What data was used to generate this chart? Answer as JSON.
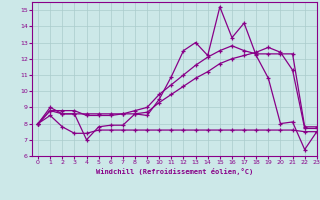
{
  "title": "",
  "xlabel": "Windchill (Refroidissement éolien,°C)",
  "ylabel": "",
  "bg_color": "#cce8e8",
  "grid_color": "#aacccc",
  "line_color": "#880088",
  "xlim": [
    -0.5,
    23
  ],
  "ylim": [
    6,
    15.5
  ],
  "xticks": [
    0,
    1,
    2,
    3,
    4,
    5,
    6,
    7,
    8,
    9,
    10,
    11,
    12,
    13,
    14,
    15,
    16,
    17,
    18,
    19,
    20,
    21,
    22,
    23
  ],
  "yticks": [
    6,
    7,
    8,
    9,
    10,
    11,
    12,
    13,
    14,
    15
  ],
  "line1_x": [
    0,
    1,
    2,
    3,
    4,
    5,
    6,
    7,
    8,
    9,
    10,
    11,
    12,
    13,
    14,
    15,
    16,
    17,
    18,
    19,
    20,
    21,
    22,
    23
  ],
  "line1_y": [
    8.0,
    9.0,
    8.6,
    8.6,
    7.0,
    7.8,
    7.9,
    7.9,
    8.6,
    8.5,
    9.5,
    10.9,
    12.5,
    13.0,
    12.2,
    15.2,
    13.3,
    14.2,
    12.2,
    10.8,
    8.0,
    8.1,
    6.4,
    7.5
  ],
  "line2_x": [
    0,
    1,
    2,
    3,
    4,
    5,
    6,
    7,
    8,
    9,
    10,
    11,
    12,
    13,
    14,
    15,
    16,
    17,
    18,
    19,
    20,
    21,
    22,
    23
  ],
  "line2_y": [
    8.0,
    8.8,
    8.8,
    8.8,
    8.5,
    8.5,
    8.5,
    8.6,
    8.8,
    9.0,
    9.8,
    10.4,
    11.0,
    11.6,
    12.1,
    12.5,
    12.8,
    12.5,
    12.3,
    12.3,
    12.3,
    12.3,
    7.8,
    7.8
  ],
  "line3_x": [
    0,
    1,
    2,
    3,
    4,
    5,
    6,
    7,
    8,
    9,
    10,
    11,
    12,
    13,
    14,
    15,
    16,
    17,
    18,
    19,
    20,
    21,
    22,
    23
  ],
  "line3_y": [
    8.0,
    8.8,
    8.6,
    8.6,
    8.6,
    8.6,
    8.6,
    8.6,
    8.6,
    8.7,
    9.3,
    9.8,
    10.3,
    10.8,
    11.2,
    11.7,
    12.0,
    12.2,
    12.4,
    12.7,
    12.4,
    11.3,
    7.7,
    7.7
  ],
  "line4_x": [
    0,
    1,
    2,
    3,
    4,
    5,
    6,
    7,
    8,
    9,
    10,
    11,
    12,
    13,
    14,
    15,
    16,
    17,
    18,
    19,
    20,
    21,
    22,
    23
  ],
  "line4_y": [
    8.0,
    8.5,
    7.8,
    7.4,
    7.4,
    7.6,
    7.6,
    7.6,
    7.6,
    7.6,
    7.6,
    7.6,
    7.6,
    7.6,
    7.6,
    7.6,
    7.6,
    7.6,
    7.6,
    7.6,
    7.6,
    7.6,
    7.5,
    7.5
  ]
}
